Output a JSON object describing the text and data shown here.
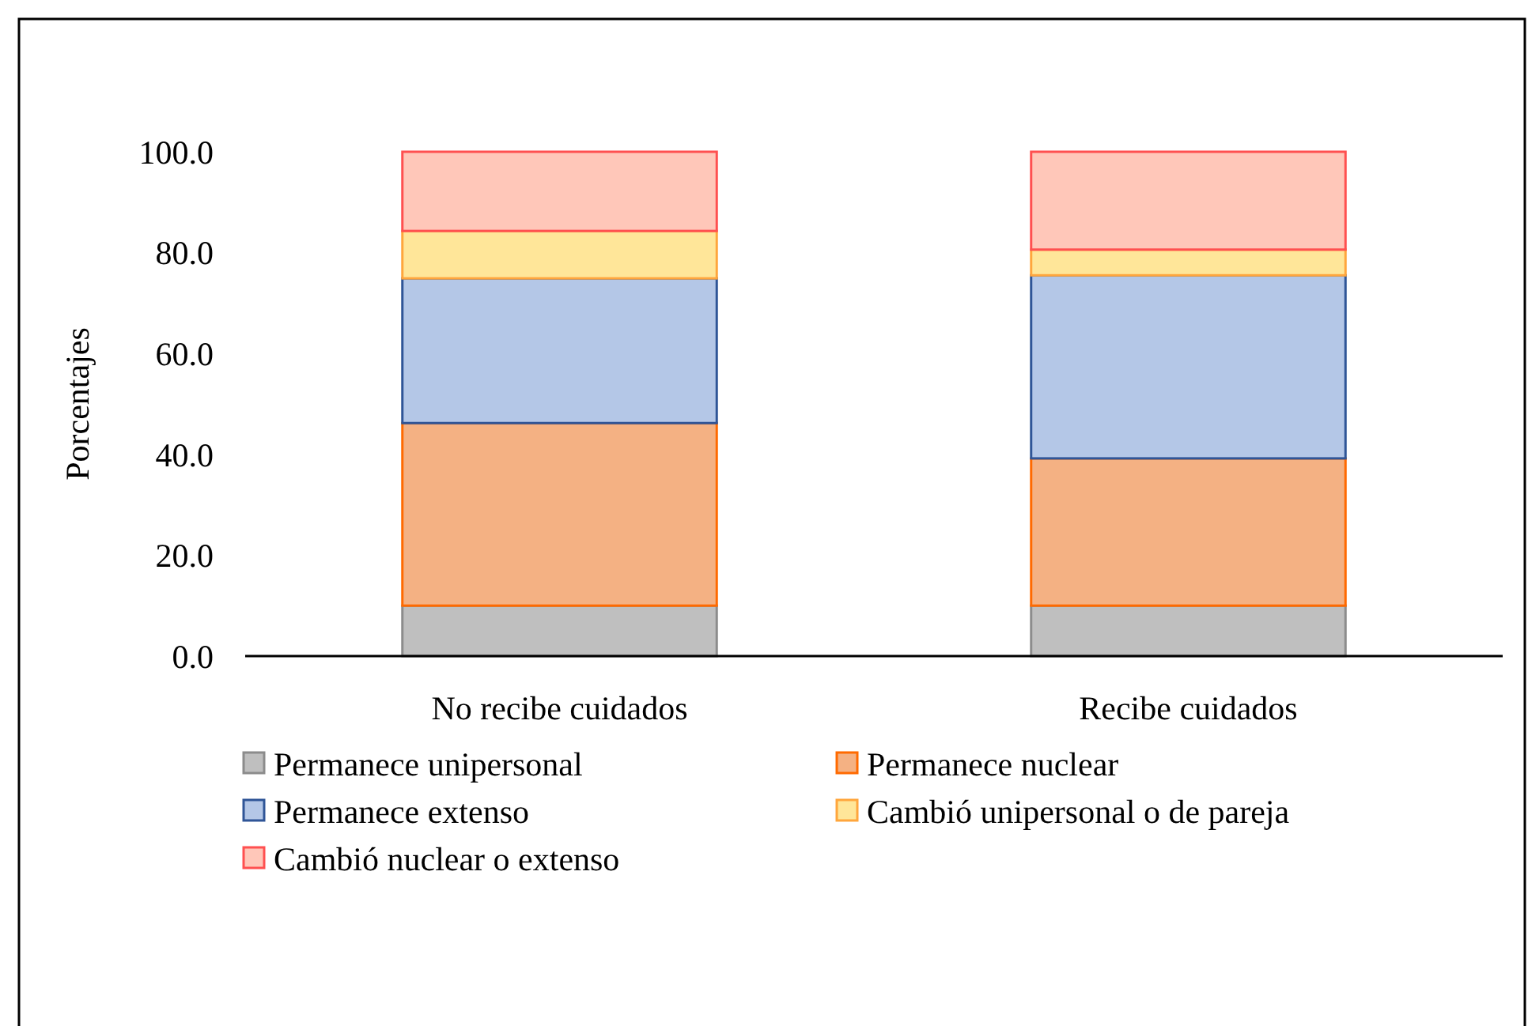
{
  "chart_data": {
    "type": "bar",
    "stacked": true,
    "ylabel": "Porcentajes",
    "categories": [
      "No recibe cuidados",
      "Recibe cuidados"
    ],
    "series": [
      {
        "name": "Permanece unipersonal",
        "color": "#bfbfbf",
        "values": [
          10.0,
          10.0
        ]
      },
      {
        "name": "Permanece nuclear",
        "color": "#f4b183",
        "values": [
          36.2,
          29.2
        ]
      },
      {
        "name": "Permanece extenso",
        "color": "#b4c7e7",
        "values": [
          28.7,
          36.3
        ]
      },
      {
        "name": "Cambió unipersonal o de pareja",
        "color": "#ffe699",
        "values": [
          9.4,
          5.1
        ]
      },
      {
        "name": "Cambió nuclear o extenso",
        "color": "#ffc7b9",
        "values": [
          15.7,
          19.4
        ]
      }
    ],
    "ylim": [
      0,
      100
    ],
    "yticks": [
      {
        "value": 0,
        "label": "0.0"
      },
      {
        "value": 20,
        "label": "20.0"
      },
      {
        "value": 40,
        "label": "40.0"
      },
      {
        "value": 60,
        "label": "60.0"
      },
      {
        "value": 80,
        "label": "80.0"
      },
      {
        "value": 100,
        "label": "100.0"
      }
    ],
    "grid": false,
    "legend": "bottom"
  }
}
